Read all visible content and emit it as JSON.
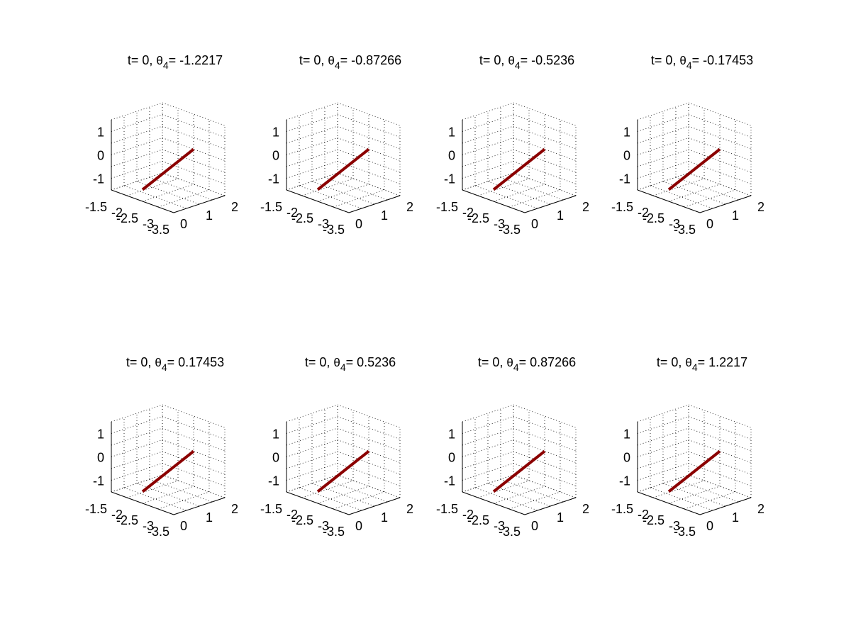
{
  "figure": {
    "background": "#ffffff"
  },
  "chart_data": [
    {
      "type": "line",
      "title": {
        "prefix": "t= 0, ",
        "symbol": "θ",
        "subscript": "4",
        "suffix": "= -1.2217"
      },
      "series": [
        {
          "color": "#8b0000",
          "x": [
            0,
            2
          ],
          "y": [
            -2.5,
            -2.5
          ],
          "z": [
            -1,
            0
          ]
        }
      ],
      "x_ticks": [
        "0",
        "1",
        "2"
      ],
      "y_ticks": [
        "-1.5",
        "-2",
        "-2.5",
        "-3",
        "-3.5"
      ],
      "z_ticks": [
        "1",
        "0",
        "-1"
      ],
      "grid": true
    },
    {
      "type": "line",
      "title": {
        "prefix": "t= 0, ",
        "symbol": "θ",
        "subscript": "4",
        "suffix": "= -0.87266"
      },
      "series": [
        {
          "color": "#8b0000",
          "x": [
            0,
            2
          ],
          "y": [
            -2.5,
            -2.5
          ],
          "z": [
            -1,
            0
          ]
        }
      ],
      "x_ticks": [
        "0",
        "1",
        "2"
      ],
      "y_ticks": [
        "-1.5",
        "-2",
        "-2.5",
        "-3",
        "-3.5"
      ],
      "z_ticks": [
        "1",
        "0",
        "-1"
      ],
      "grid": true
    },
    {
      "type": "line",
      "title": {
        "prefix": "t= 0, ",
        "symbol": "θ",
        "subscript": "4",
        "suffix": "= -0.5236"
      },
      "series": [
        {
          "color": "#8b0000",
          "x": [
            0,
            2
          ],
          "y": [
            -2.5,
            -2.5
          ],
          "z": [
            -1,
            0
          ]
        }
      ],
      "x_ticks": [
        "0",
        "1",
        "2"
      ],
      "y_ticks": [
        "-1.5",
        "-2",
        "-2.5",
        "-3",
        "-3.5"
      ],
      "z_ticks": [
        "1",
        "0",
        "-1"
      ],
      "grid": true
    },
    {
      "type": "line",
      "title": {
        "prefix": "t= 0, ",
        "symbol": "θ",
        "subscript": "4",
        "suffix": "= -0.17453"
      },
      "series": [
        {
          "color": "#8b0000",
          "x": [
            0,
            2
          ],
          "y": [
            -2.5,
            -2.5
          ],
          "z": [
            -1,
            0
          ]
        }
      ],
      "x_ticks": [
        "0",
        "1",
        "2"
      ],
      "y_ticks": [
        "-1.5",
        "-2",
        "-2.5",
        "-3",
        "-3.5"
      ],
      "z_ticks": [
        "1",
        "0",
        "-1"
      ],
      "grid": true
    },
    {
      "type": "line",
      "title": {
        "prefix": "t= 0, ",
        "symbol": "θ",
        "subscript": "4",
        "suffix": "= 0.17453"
      },
      "series": [
        {
          "color": "#8b0000",
          "x": [
            0,
            2
          ],
          "y": [
            -2.5,
            -2.5
          ],
          "z": [
            -1,
            0
          ]
        }
      ],
      "x_ticks": [
        "0",
        "1",
        "2"
      ],
      "y_ticks": [
        "-1.5",
        "-2",
        "-2.5",
        "-3",
        "-3.5"
      ],
      "z_ticks": [
        "1",
        "0",
        "-1"
      ],
      "grid": true
    },
    {
      "type": "line",
      "title": {
        "prefix": "t= 0, ",
        "symbol": "θ",
        "subscript": "4",
        "suffix": "= 0.5236"
      },
      "series": [
        {
          "color": "#8b0000",
          "x": [
            0,
            2
          ],
          "y": [
            -2.5,
            -2.5
          ],
          "z": [
            -1,
            0
          ]
        }
      ],
      "x_ticks": [
        "0",
        "1",
        "2"
      ],
      "y_ticks": [
        "-1.5",
        "-2",
        "-2.5",
        "-3",
        "-3.5"
      ],
      "z_ticks": [
        "1",
        "0",
        "-1"
      ],
      "grid": true
    },
    {
      "type": "line",
      "title": {
        "prefix": "t= 0, ",
        "symbol": "θ",
        "subscript": "4",
        "suffix": "= 0.87266"
      },
      "series": [
        {
          "color": "#8b0000",
          "x": [
            0,
            2
          ],
          "y": [
            -2.5,
            -2.5
          ],
          "z": [
            -1,
            0
          ]
        }
      ],
      "x_ticks": [
        "0",
        "1",
        "2"
      ],
      "y_ticks": [
        "-1.5",
        "-2",
        "-2.5",
        "-3",
        "-3.5"
      ],
      "z_ticks": [
        "1",
        "0",
        "-1"
      ],
      "grid": true
    },
    {
      "type": "line",
      "title": {
        "prefix": "t= 0, ",
        "symbol": "θ",
        "subscript": "4",
        "suffix": "= 1.2217"
      },
      "series": [
        {
          "color": "#8b0000",
          "x": [
            0,
            2
          ],
          "y": [
            -2.5,
            -2.5
          ],
          "z": [
            -1,
            0
          ]
        }
      ],
      "x_ticks": [
        "0",
        "1",
        "2"
      ],
      "y_ticks": [
        "-1.5",
        "-2",
        "-2.5",
        "-3",
        "-3.5"
      ],
      "z_ticks": [
        "1",
        "0",
        "-1"
      ],
      "grid": true
    }
  ]
}
